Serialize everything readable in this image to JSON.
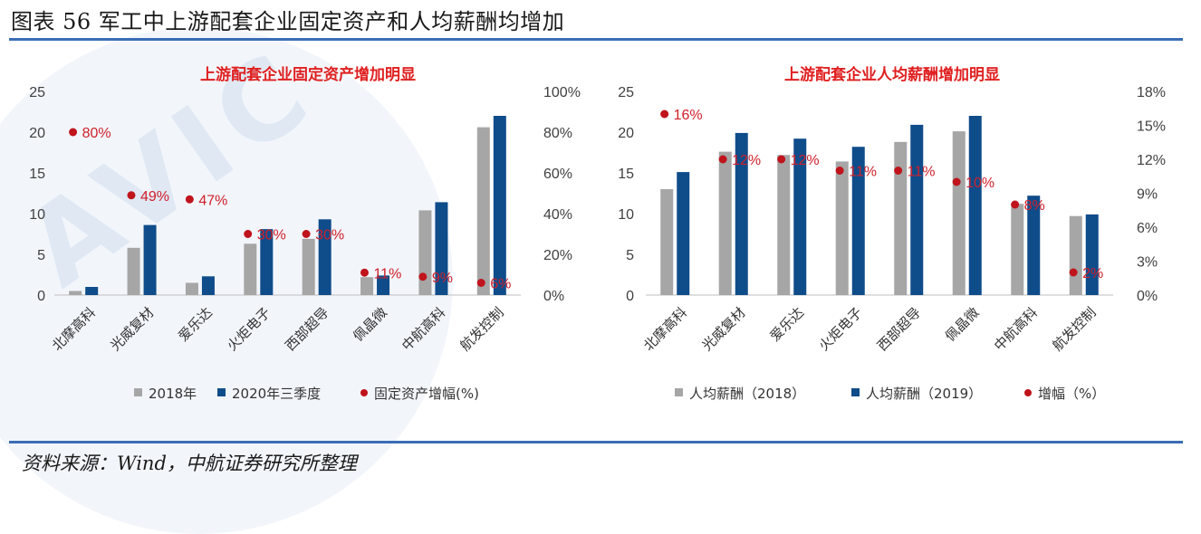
{
  "figure": {
    "title": "图表 56 军工中上游配套企业固定资产和人均薪酬均增加",
    "source": "资料来源：Wind，中航证券研究所整理",
    "watermark": "AVIC"
  },
  "colors": {
    "gray_bar": "#a6a6a6",
    "blue_bar": "#0f4c8a",
    "dot": "#c0141c",
    "title_red": "#e02020",
    "rule": "#3a6db5"
  },
  "chart_data": [
    {
      "type": "bar",
      "title": "上游配套企业固定资产增加明显",
      "categories": [
        "北摩高科",
        "光威复材",
        "爱乐达",
        "火炬电子",
        "西部超导",
        "佩晶微",
        "中航高科",
        "航发控制"
      ],
      "series": [
        {
          "name": "2018年",
          "kind": "bar",
          "axis": "left",
          "values": [
            0.5,
            5.8,
            1.5,
            6.3,
            6.9,
            2.2,
            10.4,
            20.6
          ]
        },
        {
          "name": "2020年三季度",
          "kind": "bar",
          "axis": "left",
          "values": [
            1.0,
            8.6,
            2.3,
            8.1,
            9.3,
            2.4,
            11.4,
            22.0
          ]
        },
        {
          "name": "固定资产增幅(%)",
          "kind": "dot",
          "axis": "right",
          "values": [
            80,
            49,
            47,
            30,
            30,
            11,
            9,
            6
          ],
          "labels": [
            "80%",
            "49%",
            "47%",
            "30%",
            "30%",
            "11%",
            "9%",
            "6%"
          ]
        }
      ],
      "ylim_left": [
        0,
        25
      ],
      "yticks_left": [
        "0",
        "5",
        "10",
        "15",
        "20",
        "25"
      ],
      "ylim_right": [
        0,
        100
      ],
      "yticks_right": [
        "0%",
        "20%",
        "40%",
        "60%",
        "80%",
        "100%"
      ],
      "legend": "bottom"
    },
    {
      "type": "bar",
      "title": "上游配套企业人均薪酬增加明显",
      "categories": [
        "北摩高科",
        "光威复材",
        "爱乐达",
        "火炬电子",
        "西部超导",
        "佩晶微",
        "中航高科",
        "航发控制"
      ],
      "series": [
        {
          "name": "人均薪酬（2018）",
          "kind": "bar",
          "axis": "left",
          "values": [
            13.0,
            17.6,
            17.2,
            16.4,
            18.8,
            20.1,
            11.2,
            9.7
          ]
        },
        {
          "name": "人均薪酬（2019）",
          "kind": "bar",
          "axis": "left",
          "values": [
            15.1,
            19.9,
            19.2,
            18.2,
            20.9,
            22.0,
            12.2,
            9.9
          ]
        },
        {
          "name": "增幅（%）",
          "kind": "dot",
          "axis": "right",
          "values": [
            16,
            12,
            12,
            11,
            11,
            10,
            8,
            2
          ],
          "labels": [
            "16%",
            "12%",
            "12%",
            "11%",
            "11%",
            "10%",
            "8%",
            "2%"
          ]
        }
      ],
      "ylim_left": [
        0,
        25
      ],
      "yticks_left": [
        "0",
        "5",
        "10",
        "15",
        "20",
        "25"
      ],
      "ylim_right": [
        0,
        18
      ],
      "yticks_right": [
        "0%",
        "3%",
        "6%",
        "9%",
        "12%",
        "15%",
        "18%"
      ],
      "legend": "bottom"
    }
  ]
}
